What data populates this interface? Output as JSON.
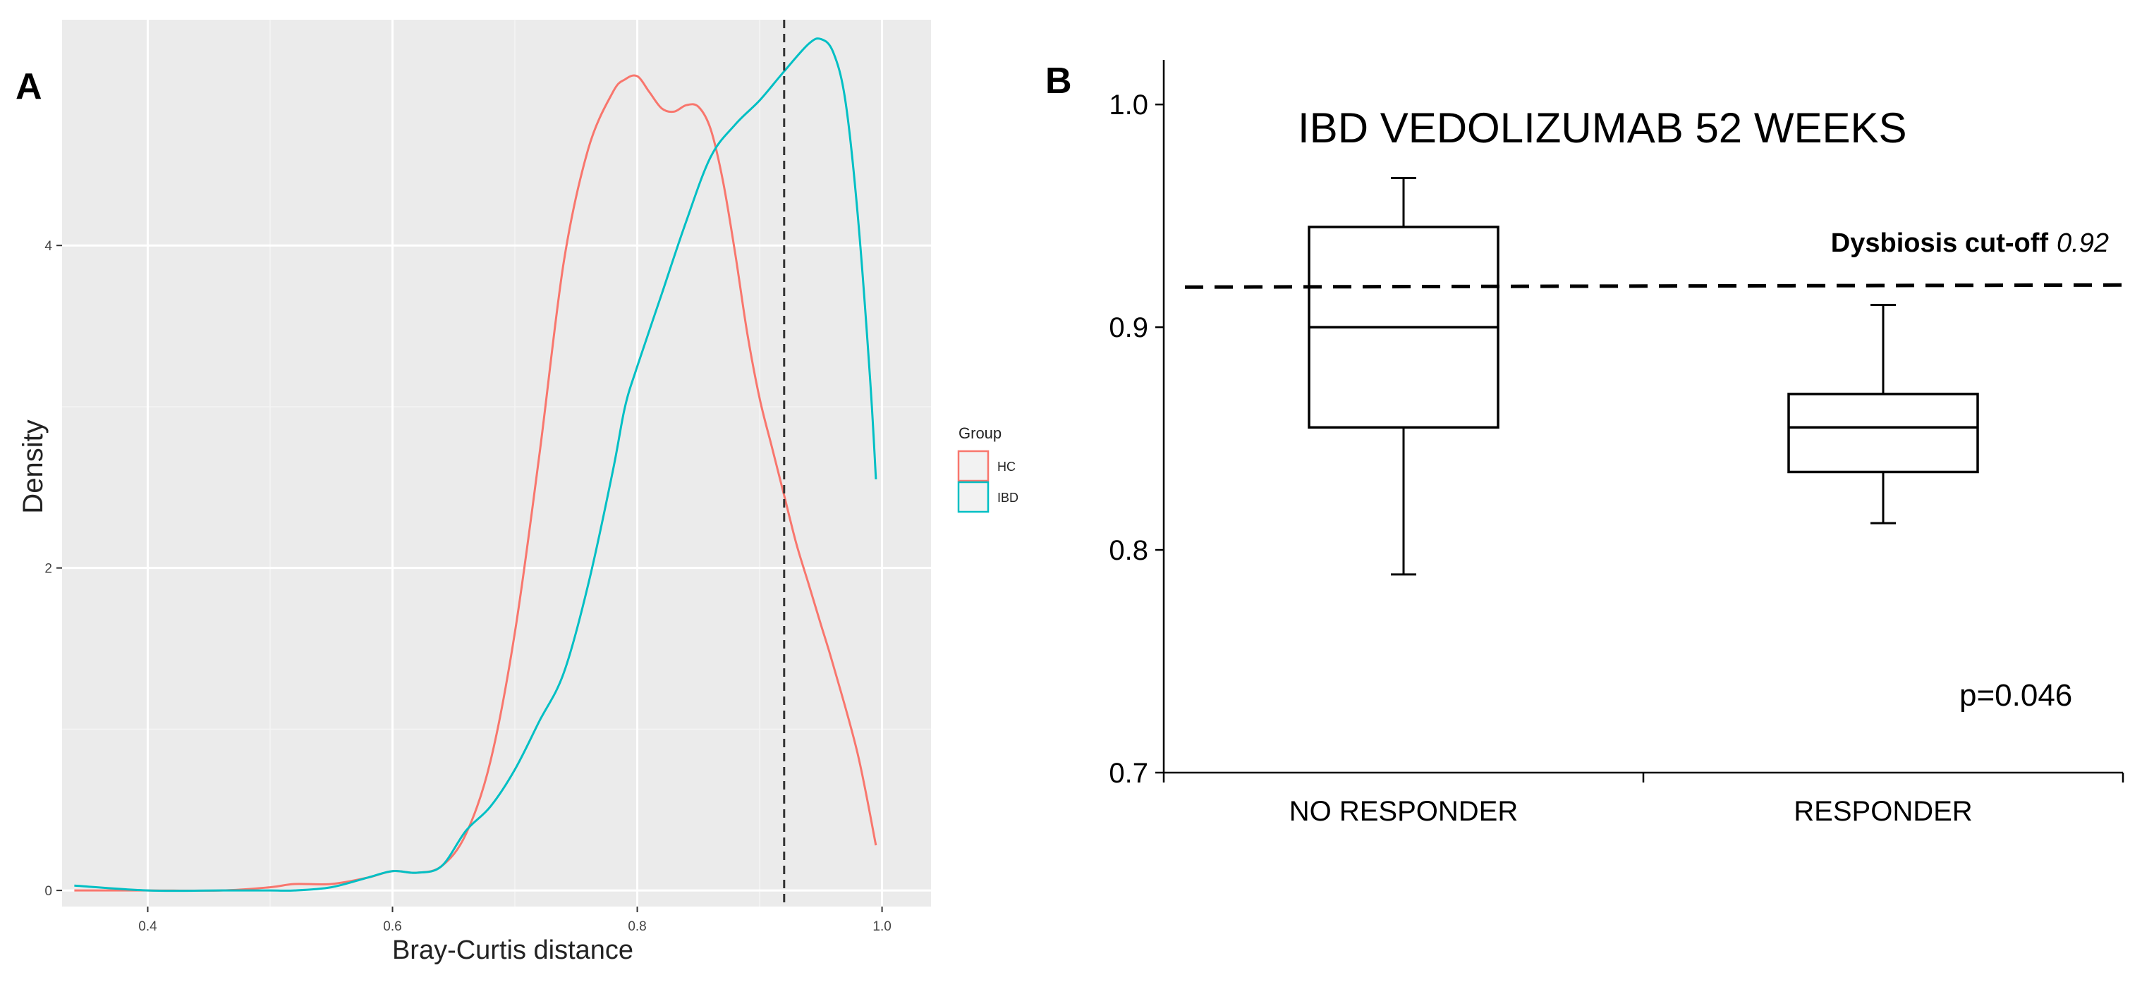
{
  "panels": {
    "a_label": "A",
    "b_label": "B"
  },
  "chart_data": [
    {
      "type": "line",
      "subtype": "density",
      "panel": "A",
      "title": "",
      "xlabel": "Bray-Curtis distance",
      "ylabel": "Density",
      "xlim": [
        0.33,
        1.04
      ],
      "ylim": [
        -0.1,
        5.4
      ],
      "x_ticks": [
        "0.4",
        "0.6",
        "0.8",
        "1.0"
      ],
      "x_tick_values": [
        0.4,
        0.6,
        0.8,
        1.0
      ],
      "y_ticks": [
        "0",
        "2",
        "4"
      ],
      "y_tick_values": [
        0,
        2,
        4
      ],
      "grid": true,
      "background": "#ebebeb",
      "vline": {
        "x": 0.92,
        "style": "dashed",
        "color": "#333333"
      },
      "legend": {
        "title": "Group",
        "position": "right"
      },
      "series": [
        {
          "name": "HC",
          "color": "#f8766d",
          "x": [
            0.34,
            0.4,
            0.46,
            0.5,
            0.52,
            0.55,
            0.58,
            0.6,
            0.62,
            0.64,
            0.66,
            0.68,
            0.7,
            0.72,
            0.74,
            0.76,
            0.78,
            0.79,
            0.8,
            0.81,
            0.82,
            0.83,
            0.84,
            0.85,
            0.86,
            0.87,
            0.88,
            0.89,
            0.9,
            0.91,
            0.92,
            0.93,
            0.94,
            0.95,
            0.96,
            0.98,
            0.995
          ],
          "y": [
            0.0,
            0.0,
            0.0,
            0.02,
            0.04,
            0.04,
            0.08,
            0.12,
            0.11,
            0.15,
            0.35,
            0.8,
            1.6,
            2.7,
            3.9,
            4.6,
            4.95,
            5.03,
            5.05,
            4.95,
            4.85,
            4.83,
            4.87,
            4.86,
            4.72,
            4.4,
            3.95,
            3.45,
            3.05,
            2.75,
            2.45,
            2.15,
            1.9,
            1.65,
            1.4,
            0.85,
            0.28
          ]
        },
        {
          "name": "IBD",
          "color": "#00bfc4",
          "x": [
            0.34,
            0.4,
            0.46,
            0.5,
            0.52,
            0.55,
            0.58,
            0.6,
            0.62,
            0.64,
            0.66,
            0.68,
            0.7,
            0.72,
            0.74,
            0.76,
            0.78,
            0.79,
            0.8,
            0.82,
            0.84,
            0.86,
            0.88,
            0.9,
            0.92,
            0.94,
            0.95,
            0.96,
            0.97,
            0.98,
            0.99,
            0.995
          ],
          "y": [
            0.03,
            0.0,
            0.0,
            0.0,
            0.0,
            0.02,
            0.08,
            0.12,
            0.11,
            0.15,
            0.37,
            0.52,
            0.75,
            1.05,
            1.35,
            1.9,
            2.6,
            3.0,
            3.25,
            3.7,
            4.15,
            4.55,
            4.75,
            4.9,
            5.08,
            5.25,
            5.28,
            5.2,
            4.9,
            4.2,
            3.2,
            2.55
          ]
        }
      ]
    },
    {
      "type": "box",
      "panel": "B",
      "title": "IBD VEDOLIZUMAB 52 WEEKS",
      "xlabel": "",
      "ylabel": "",
      "ylim": [
        0.7,
        1.02
      ],
      "y_ticks": [
        "0.7",
        "0.8",
        "0.9",
        "1.0"
      ],
      "y_tick_values": [
        0.7,
        0.8,
        0.9,
        1.0
      ],
      "grid": false,
      "categories": [
        "NO RESPONDER",
        "RESPONDER"
      ],
      "boxes": [
        {
          "category": "NO RESPONDER",
          "min": 0.789,
          "q1": 0.855,
          "median": 0.9,
          "q3": 0.945,
          "max": 0.967
        },
        {
          "category": "RESPONDER",
          "min": 0.812,
          "q1": 0.835,
          "median": 0.855,
          "q3": 0.87,
          "max": 0.91
        }
      ],
      "cutoff": {
        "label": "Dysbiosis cut-off",
        "value_text": "0.92",
        "value": 0.918,
        "style": "dashed"
      },
      "annotation": "p=0.046"
    }
  ]
}
